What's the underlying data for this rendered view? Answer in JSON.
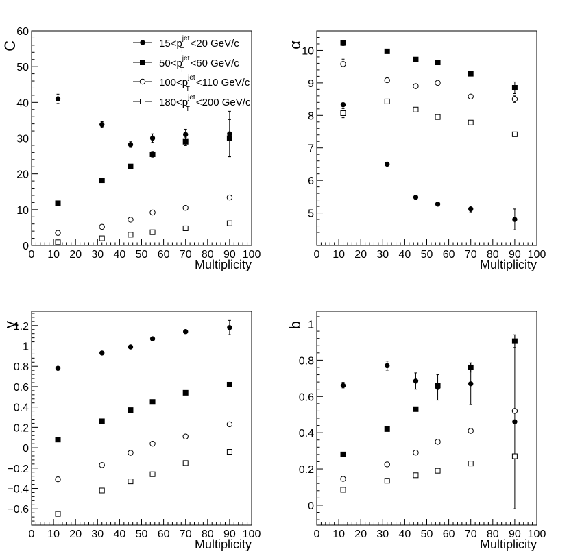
{
  "chart_data": [
    {
      "type": "scatter",
      "ylabel": "C",
      "xlabel": "Multiplicity",
      "xlim": [
        0,
        100
      ],
      "ylim": [
        0,
        60
      ],
      "xticks": [
        0,
        10,
        20,
        30,
        40,
        50,
        60,
        70,
        80,
        90,
        100
      ],
      "yticks": [
        0,
        10,
        20,
        30,
        40,
        50,
        60
      ],
      "legend": {
        "placement": "top-right",
        "entries": [
          {
            "pre": "15<p",
            "sup": "jet",
            "sub": "T",
            "post": "<20 GeV/c",
            "marker": "filled-circle"
          },
          {
            "pre": "50<p",
            "sup": "jet",
            "sub": "T",
            "post": "<60 GeV/c",
            "marker": "filled-square"
          },
          {
            "pre": "100<p",
            "sup": "jet",
            "sub": "T",
            "post": "<110 GeV/c",
            "marker": "open-circle"
          },
          {
            "pre": "180<p",
            "sup": "jet",
            "sub": "T",
            "post": "<200 GeV/c",
            "marker": "open-square"
          }
        ]
      },
      "series": [
        {
          "marker": "filled-circle",
          "x": [
            12,
            32,
            45,
            55,
            70,
            90
          ],
          "y": [
            41,
            33.8,
            28.2,
            30,
            31,
            31.2
          ],
          "err": [
            1.3,
            0.8,
            0.8,
            1.2,
            1.5,
            6.3
          ]
        },
        {
          "marker": "filled-square",
          "x": [
            12,
            32,
            45,
            55,
            70,
            90
          ],
          "y": [
            11.8,
            18.2,
            22.1,
            25.5,
            29,
            30
          ],
          "err": [
            0,
            0,
            0,
            0.8,
            1.1,
            5.2
          ]
        },
        {
          "marker": "open-circle",
          "x": [
            12,
            32,
            45,
            55,
            70,
            90
          ],
          "y": [
            3.5,
            5.2,
            7.2,
            9.2,
            10.5,
            13.4
          ],
          "err": [
            0,
            0,
            0,
            0,
            0,
            0.5
          ]
        },
        {
          "marker": "open-square",
          "x": [
            12,
            32,
            45,
            55,
            70,
            90
          ],
          "y": [
            0.9,
            2,
            3,
            3.7,
            4.8,
            6.2
          ],
          "err": [
            0,
            0,
            0,
            0,
            0,
            0
          ]
        }
      ]
    },
    {
      "type": "scatter",
      "ylabel": "α",
      "xlabel": "Multiplicity",
      "xlim": [
        0,
        100
      ],
      "ylim": [
        4,
        10.6
      ],
      "xticks": [
        0,
        10,
        20,
        30,
        40,
        50,
        60,
        70,
        80,
        90,
        100
      ],
      "yticks": [
        5,
        6,
        7,
        8,
        9,
        10
      ],
      "series": [
        {
          "marker": "filled-circle",
          "x": [
            12,
            32,
            45,
            55,
            70,
            90
          ],
          "y": [
            8.33,
            6.5,
            5.48,
            5.27,
            5.12,
            4.8
          ],
          "err": [
            0,
            0,
            0,
            0,
            0.09,
            0.32
          ]
        },
        {
          "marker": "filled-square",
          "x": [
            12,
            32,
            45,
            55,
            70,
            90
          ],
          "y": [
            10.23,
            9.97,
            9.72,
            9.63,
            9.28,
            8.85
          ],
          "err": [
            0.08,
            0,
            0,
            0,
            0.06,
            0.18
          ]
        },
        {
          "marker": "open-circle",
          "x": [
            12,
            32,
            45,
            55,
            70,
            90
          ],
          "y": [
            9.58,
            9.08,
            8.9,
            9,
            8.58,
            8.5
          ],
          "err": [
            0.15,
            0,
            0,
            0,
            0,
            0.1
          ]
        },
        {
          "marker": "open-square",
          "x": [
            12,
            32,
            45,
            55,
            70,
            90
          ],
          "y": [
            8.07,
            8.43,
            8.18,
            7.95,
            7.78,
            7.42
          ],
          "err": [
            0.14,
            0,
            0,
            0,
            0,
            0
          ]
        }
      ]
    },
    {
      "type": "scatter",
      "ylabel": "γ",
      "xlabel": "Multiplicity",
      "xlim": [
        0,
        100
      ],
      "ylim": [
        -0.76,
        1.34
      ],
      "xticks": [
        0,
        10,
        20,
        30,
        40,
        50,
        60,
        70,
        80,
        90,
        100
      ],
      "yticks": [
        -0.6,
        -0.4,
        -0.2,
        0,
        0.2,
        0.4,
        0.6,
        0.8,
        1,
        1.2
      ],
      "ytick_labels": [
        "−0.6",
        "−0.4",
        "−0.2",
        "0",
        "0.2",
        "0.4",
        "0.6",
        "0.8",
        "1",
        "1.2"
      ],
      "series": [
        {
          "marker": "filled-circle",
          "x": [
            12,
            32,
            45,
            55,
            70,
            90
          ],
          "y": [
            0.78,
            0.93,
            0.99,
            1.07,
            1.14,
            1.18
          ],
          "err": [
            0,
            0,
            0,
            0,
            0,
            0.07
          ]
        },
        {
          "marker": "filled-square",
          "x": [
            12,
            32,
            45,
            55,
            70,
            90
          ],
          "y": [
            0.08,
            0.26,
            0.37,
            0.45,
            0.54,
            0.62
          ],
          "err": [
            0,
            0,
            0,
            0,
            0,
            0.02
          ]
        },
        {
          "marker": "open-circle",
          "x": [
            12,
            32,
            45,
            55,
            70,
            90
          ],
          "y": [
            -0.31,
            -0.17,
            -0.05,
            0.04,
            0.11,
            0.23
          ],
          "err": [
            0,
            0,
            0,
            0,
            0,
            0
          ]
        },
        {
          "marker": "open-square",
          "x": [
            12,
            32,
            45,
            55,
            70,
            90
          ],
          "y": [
            -0.65,
            -0.42,
            -0.33,
            -0.26,
            -0.15,
            -0.04
          ],
          "err": [
            0,
            0,
            0,
            0,
            0,
            0
          ]
        }
      ]
    },
    {
      "type": "scatter",
      "ylabel": "b",
      "xlabel": "Multiplicity",
      "xlim": [
        0,
        100
      ],
      "ylim": [
        -0.11,
        1.07
      ],
      "xticks": [
        0,
        10,
        20,
        30,
        40,
        50,
        60,
        70,
        80,
        90,
        100
      ],
      "yticks": [
        0,
        0.2,
        0.4,
        0.6,
        0.8,
        1
      ],
      "series": [
        {
          "marker": "filled-circle",
          "x": [
            12,
            32,
            45,
            55,
            70,
            90
          ],
          "y": [
            0.66,
            0.77,
            0.685,
            0.65,
            0.67,
            0.46
          ],
          "err": [
            0.018,
            0.025,
            0.045,
            0.07,
            0.115,
            0.48
          ]
        },
        {
          "marker": "filled-square",
          "x": [
            12,
            32,
            45,
            55,
            70,
            90
          ],
          "y": [
            0.28,
            0.42,
            0.53,
            0.66,
            0.76,
            0.905
          ],
          "err": [
            0,
            0,
            0,
            0,
            0.025,
            0.035
          ]
        },
        {
          "marker": "open-circle",
          "x": [
            12,
            32,
            45,
            55,
            70,
            90
          ],
          "y": [
            0.145,
            0.225,
            0.29,
            0.35,
            0.41,
            0.52
          ],
          "err": [
            0,
            0,
            0,
            0,
            0,
            0
          ]
        },
        {
          "marker": "open-square",
          "x": [
            12,
            32,
            45,
            55,
            70,
            90
          ],
          "y": [
            0.085,
            0.135,
            0.165,
            0.19,
            0.23,
            0.27
          ],
          "err": [
            0,
            0,
            0,
            0,
            0,
            0
          ]
        }
      ]
    }
  ]
}
